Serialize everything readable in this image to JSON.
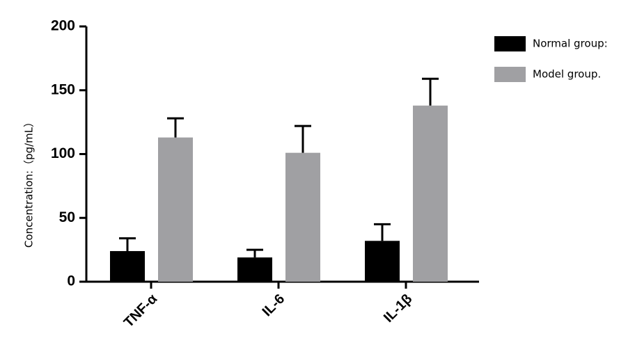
{
  "chart_data": {
    "type": "bar",
    "y_label": "Concentration:（pg/mL）",
    "categories": [
      "TNF-α",
      "IL-6",
      "IL-1β"
    ],
    "series": [
      {
        "name": "Normal group:",
        "color": "#000000",
        "values": [
          24,
          19,
          32
        ],
        "errors": [
          10,
          6,
          13
        ]
      },
      {
        "name": "Model group.",
        "color": "#a0a0a3",
        "values": [
          113,
          101,
          138
        ],
        "errors": [
          15,
          21,
          21
        ]
      }
    ],
    "ylim": [
      0,
      200
    ],
    "yticks": [
      0,
      50,
      100,
      150,
      200
    ],
    "grid": false
  }
}
